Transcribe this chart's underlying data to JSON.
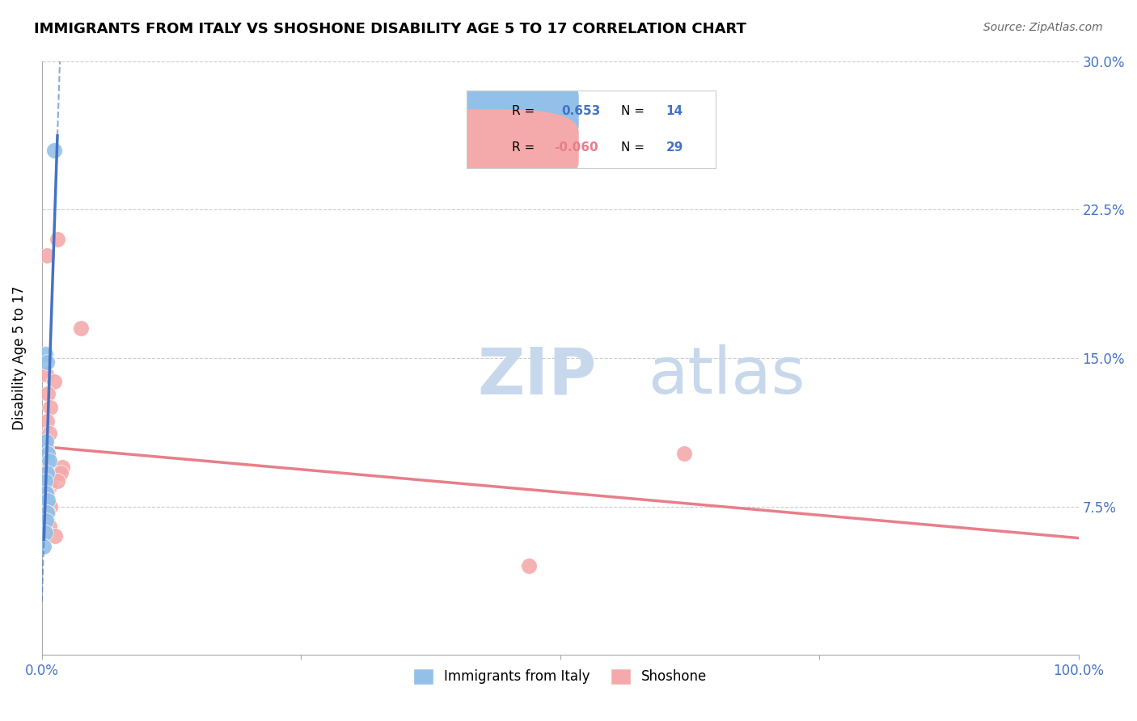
{
  "title": "IMMIGRANTS FROM ITALY VS SHOSHONE DISABILITY AGE 5 TO 17 CORRELATION CHART",
  "source": "Source: ZipAtlas.com",
  "ylabel": "Disability Age 5 to 17",
  "xlim": [
    0.0,
    100.0
  ],
  "ylim": [
    0.0,
    30.0
  ],
  "yticks": [
    0.0,
    7.5,
    15.0,
    22.5,
    30.0
  ],
  "xticks": [
    0.0,
    25.0,
    50.0,
    75.0,
    100.0
  ],
  "legend_italy_R": "0.653",
  "legend_italy_N": "14",
  "legend_shoshone_R": "-0.060",
  "legend_shoshone_N": "29",
  "blue_scatter_x": [
    1.2,
    0.3,
    0.5,
    0.4,
    0.6,
    0.7,
    0.5,
    0.3,
    0.4,
    0.6,
    0.5,
    0.4,
    0.3,
    0.2
  ],
  "blue_scatter_y": [
    25.5,
    15.2,
    14.8,
    10.8,
    10.2,
    9.8,
    9.2,
    8.8,
    8.2,
    7.8,
    7.2,
    6.8,
    6.2,
    5.5
  ],
  "pink_scatter_x": [
    1.5,
    0.5,
    3.8,
    0.4,
    1.2,
    0.6,
    0.8,
    0.5,
    0.7,
    0.4,
    0.6,
    0.5,
    0.3,
    0.4,
    0.6,
    0.7,
    0.5,
    0.4,
    0.8,
    0.6,
    0.5,
    0.7,
    0.4,
    2.0,
    1.8,
    1.5,
    62.0,
    47.0,
    1.3
  ],
  "pink_scatter_y": [
    21.0,
    20.2,
    16.5,
    14.2,
    13.8,
    13.2,
    12.5,
    11.8,
    11.2,
    10.5,
    10.2,
    9.8,
    9.5,
    9.2,
    8.8,
    8.5,
    8.2,
    7.8,
    7.5,
    7.2,
    6.8,
    6.5,
    6.2,
    9.5,
    9.2,
    8.8,
    10.2,
    4.5,
    6.0
  ],
  "blue_line_color": "#4472C4",
  "pink_line_color": "#E87E8A",
  "blue_scatter_color": "#92C0E8",
  "pink_scatter_color": "#F4AAAA",
  "watermark_zip": "ZIP",
  "watermark_atlas": "atlas",
  "watermark_color": "#C8D8EC"
}
